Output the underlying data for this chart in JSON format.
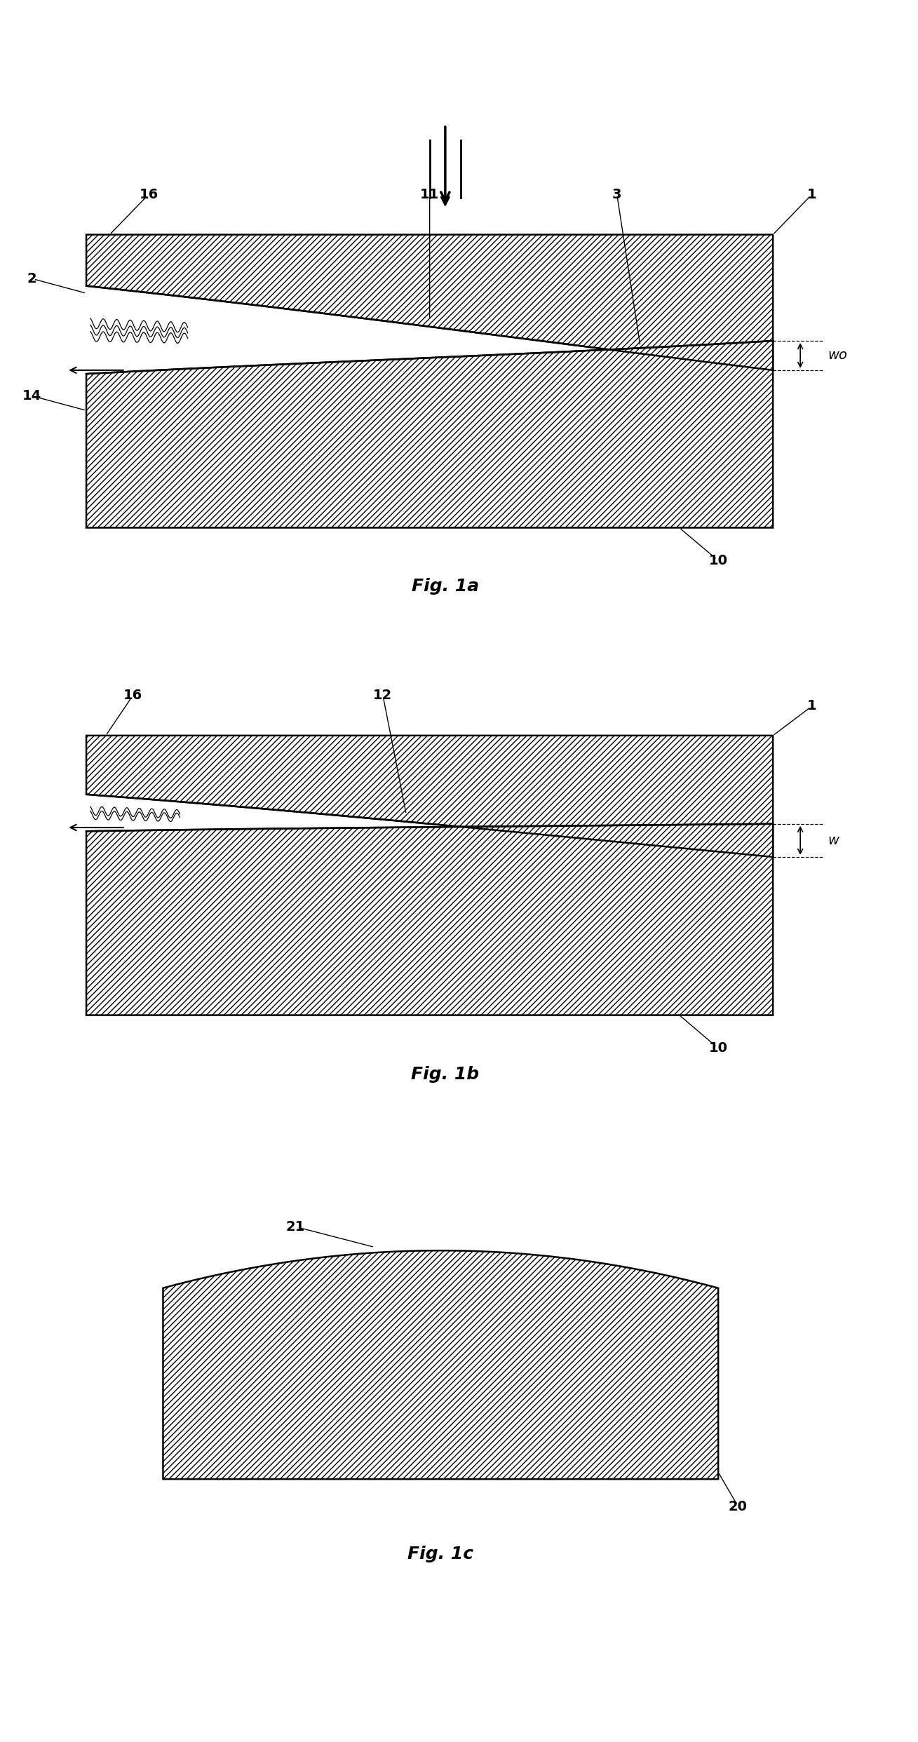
{
  "fig_width": 13.09,
  "fig_height": 24.84,
  "bg_color": "#ffffff",
  "lw": 1.8,
  "hatch": "////",
  "fig1a_caption": "Fig. 1a",
  "fig1b_caption": "Fig. 1b",
  "fig1c_caption": "Fig. 1c",
  "label_fontsize": 14,
  "caption_fontsize": 18
}
